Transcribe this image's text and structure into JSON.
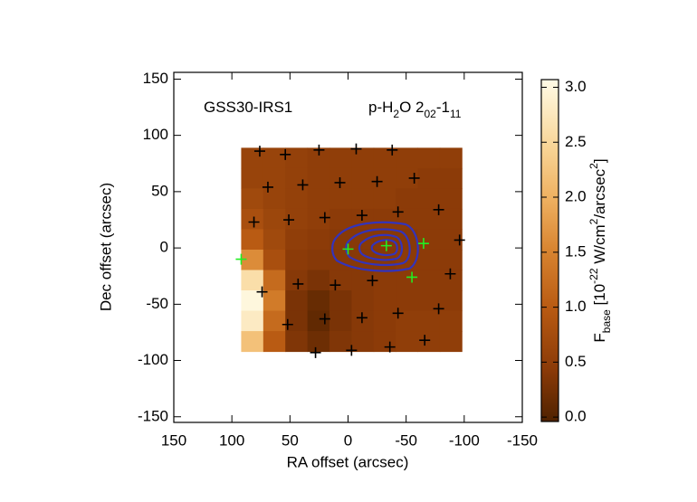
{
  "chart_data": {
    "type": "heatmap",
    "annotations": [
      [
        [
          "GSS30-IRS1",
          "normal"
        ]
      ],
      [
        [
          "p-H",
          "normal"
        ],
        [
          "2",
          "sub"
        ],
        [
          "O 2",
          "normal"
        ],
        [
          "02",
          "sub"
        ],
        [
          "-1",
          "normal"
        ],
        [
          "11",
          "sub"
        ]
      ]
    ],
    "xlabel": "RA offset (arcsec)",
    "ylabel": "Dec offset (arcsec)",
    "xlim": [
      150,
      -150
    ],
    "xticks": [
      150,
      100,
      50,
      0,
      -50,
      -100,
      -150
    ],
    "ylim": [
      -155,
      156
    ],
    "yticks": [
      -150,
      -100,
      -50,
      0,
      50,
      100,
      150
    ],
    "image_xlim": [
      92,
      -98
    ],
    "image_ylim": [
      -92,
      89
    ],
    "z": [
      [
        0.6,
        0.6,
        0.55,
        0.5,
        0.5,
        0.5,
        0.5,
        0.5,
        0.5,
        0.5
      ],
      [
        0.6,
        0.6,
        0.55,
        0.5,
        0.5,
        0.5,
        0.5,
        0.5,
        0.45,
        0.45
      ],
      [
        0.7,
        0.6,
        0.55,
        0.5,
        0.5,
        0.5,
        0.5,
        0.45,
        0.45,
        0.45
      ],
      [
        0.8,
        0.65,
        0.55,
        0.5,
        0.45,
        0.45,
        0.45,
        0.45,
        0.45,
        0.45
      ],
      [
        1.0,
        0.7,
        0.5,
        0.45,
        0.4,
        0.4,
        0.4,
        0.4,
        0.45,
        0.45
      ],
      [
        1.6,
        0.8,
        0.45,
        0.4,
        0.4,
        0.4,
        0.4,
        0.45,
        0.45,
        0.45
      ],
      [
        2.6,
        1.2,
        0.4,
        0.3,
        0.4,
        0.4,
        0.45,
        0.45,
        0.45,
        0.45
      ],
      [
        3.0,
        1.4,
        0.3,
        0.15,
        0.3,
        0.4,
        0.45,
        0.45,
        0.45,
        0.45
      ],
      [
        2.8,
        1.2,
        0.3,
        0.1,
        0.3,
        0.4,
        0.45,
        0.5,
        0.5,
        0.5
      ],
      [
        2.2,
        1.0,
        0.35,
        0.2,
        0.35,
        0.4,
        0.45,
        0.5,
        0.5,
        0.5
      ]
    ],
    "clim": [
      -0.04,
      3.07
    ],
    "cticks": [
      {
        "value": 0,
        "label": "0.0"
      },
      {
        "value": 0.5,
        "label": "0.5"
      },
      {
        "value": 1,
        "label": "1.0"
      },
      {
        "value": 1.5,
        "label": "1.5"
      },
      {
        "value": 2,
        "label": "2.0"
      },
      {
        "value": 2.5,
        "label": "2.5"
      },
      {
        "value": 3,
        "label": "3.0"
      }
    ],
    "colorbar_label": [
      [
        "F",
        "normal"
      ],
      [
        "base",
        "sub"
      ],
      [
        " [10",
        "normal"
      ],
      [
        "-22",
        "super"
      ],
      [
        " W/cm",
        "normal"
      ],
      [
        "2",
        "super"
      ],
      [
        "/arcsec",
        "normal"
      ],
      [
        "2",
        "super"
      ],
      [
        "]",
        "normal"
      ]
    ],
    "markers": [
      {
        "color": "#000000",
        "x": [
          76,
          54,
          25,
          -7,
          -38,
          69,
          39,
          7,
          -25,
          -57,
          81,
          51,
          20,
          -12,
          -43,
          -78,
          -96,
          74,
          43,
          11,
          -21,
          -88,
          52,
          20,
          -12,
          -43,
          -78,
          28,
          -3,
          -36,
          -66
        ],
        "y": [
          86,
          83,
          87,
          88,
          87,
          54,
          56,
          58,
          59,
          62,
          23,
          25,
          27,
          29,
          32,
          34,
          7,
          -39,
          -32,
          -33,
          -29,
          -23,
          -68,
          -63,
          -62,
          -58,
          -54,
          -93,
          -91,
          -88,
          -82
        ]
      },
      {
        "color": "#22ee22",
        "x": [
          92,
          0,
          -33,
          -65,
          -55
        ],
        "y": [
          -10,
          -1,
          2,
          4,
          -26
        ]
      }
    ]
  }
}
